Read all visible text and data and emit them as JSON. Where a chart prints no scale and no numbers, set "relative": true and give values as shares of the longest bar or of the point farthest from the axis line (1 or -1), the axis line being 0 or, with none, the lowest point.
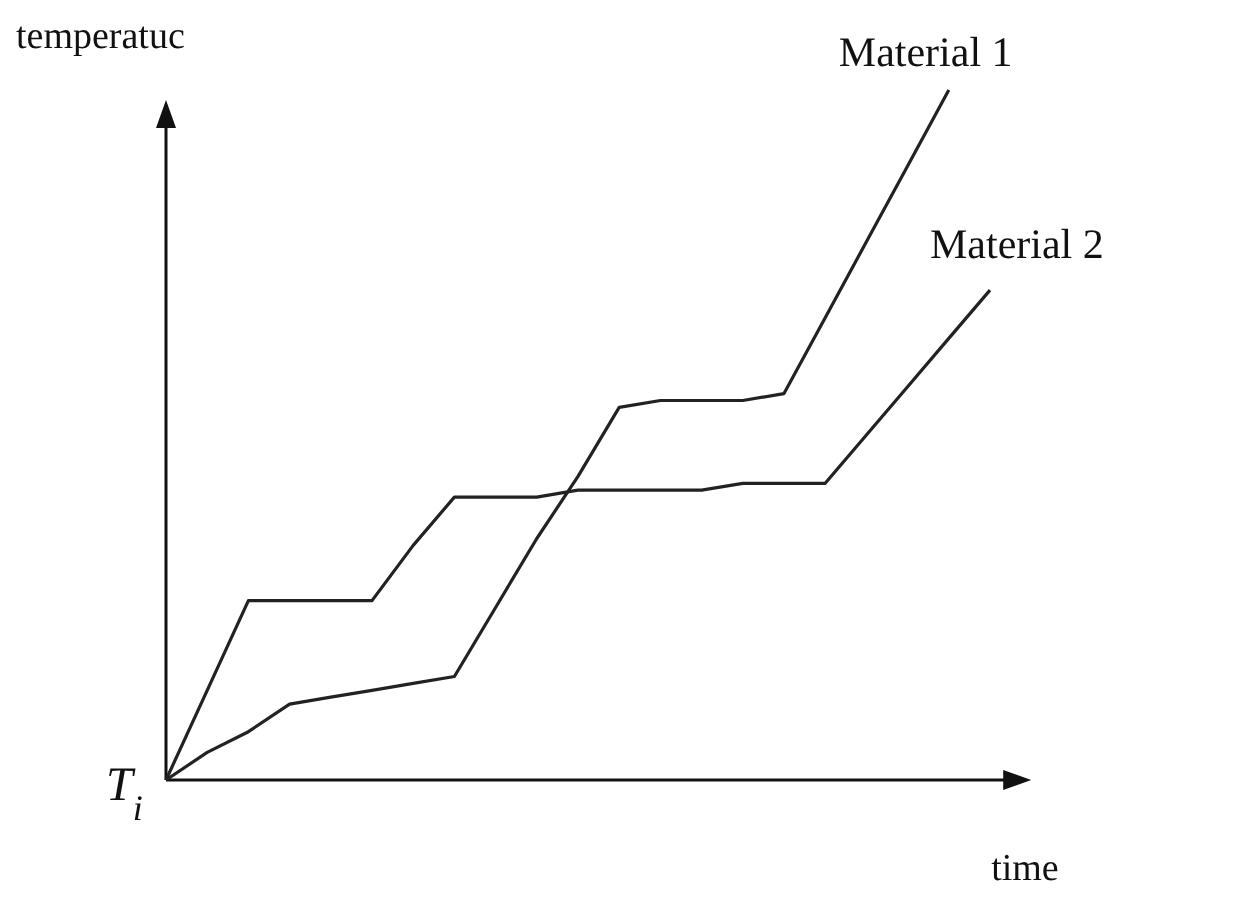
{
  "chart_data": {
    "type": "line",
    "relative": true,
    "xlabel": "time",
    "ylabel": "temperatuc",
    "marker": "none",
    "line_style": "solid",
    "annotations": [
      "T$_{i}$"
    ],
    "categories": [
      null,
      null,
      null,
      null,
      null,
      null,
      null,
      null,
      null,
      null,
      null,
      null,
      null,
      null,
      null,
      null,
      null,
      null,
      null,
      null,
      null,
      null
    ],
    "series": [
      {
        "name": "Material 1",
        "color": "#222222",
        "values": [
          0,
          0.04,
          0.07,
          0.11,
          0.12,
          0.13,
          0.14,
          0.15,
          0.25,
          0.35,
          0.44,
          0.54,
          0.55,
          0.55,
          0.55,
          0.56,
          0.67,
          0.78,
          0.89,
          1.0,
          null,
          null
        ]
      },
      {
        "name": "Material 2",
        "color": "#222222",
        "values": [
          0,
          0.13,
          0.26,
          0.26,
          0.26,
          0.26,
          0.34,
          0.41,
          0.41,
          0.41,
          0.42,
          0.42,
          0.42,
          0.42,
          0.43,
          0.43,
          0.43,
          0.5,
          0.57,
          0.64,
          0.71,
          null
        ]
      }
    ]
  }
}
